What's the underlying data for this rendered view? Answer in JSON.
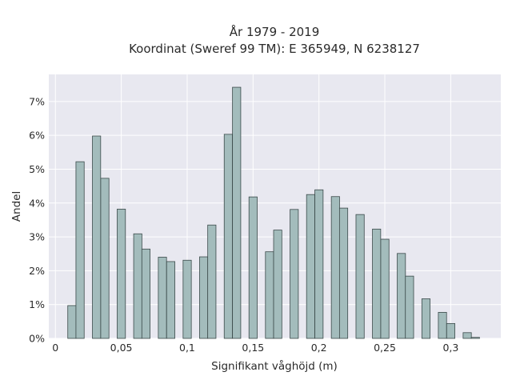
{
  "chart_data": {
    "type": "bar",
    "title_line1": "År 1979 - 2019",
    "title_line2": "Koordinat (Sweref 99 TM): E 365949, N 6238127",
    "xlabel": "Signifikant våghöjd (m)",
    "ylabel": "Andel",
    "xlim": [
      -0.005,
      0.338
    ],
    "ylim": [
      0,
      7.8
    ],
    "bin_width": 0.00625,
    "x_ticks": [
      {
        "value": 0,
        "label": "0"
      },
      {
        "value": 0.05,
        "label": "0,05"
      },
      {
        "value": 0.1,
        "label": "0,1"
      },
      {
        "value": 0.15,
        "label": "0,15"
      },
      {
        "value": 0.2,
        "label": "0,2"
      },
      {
        "value": 0.25,
        "label": "0,25"
      },
      {
        "value": 0.3,
        "label": "0,3"
      }
    ],
    "y_ticks": [
      {
        "value": 0,
        "label": "0%"
      },
      {
        "value": 1,
        "label": "1%"
      },
      {
        "value": 2,
        "label": "2%"
      },
      {
        "value": 3,
        "label": "3%"
      },
      {
        "value": 4,
        "label": "4%"
      },
      {
        "value": 5,
        "label": "5%"
      },
      {
        "value": 6,
        "label": "6%"
      },
      {
        "value": 7,
        "label": "7%"
      }
    ],
    "bins_start": [
      0.0094,
      0.0156,
      0.0281,
      0.0344,
      0.0469,
      0.0594,
      0.0656,
      0.0781,
      0.0844,
      0.0969,
      0.1094,
      0.1156,
      0.1281,
      0.1344,
      0.1469,
      0.1594,
      0.1656,
      0.1781,
      0.1906,
      0.1969,
      0.2094,
      0.2156,
      0.2281,
      0.2406,
      0.2469,
      0.2594,
      0.2656,
      0.2781,
      0.2906,
      0.2969,
      0.3094,
      0.3156
    ],
    "values": [
      0.97,
      5.22,
      5.98,
      4.73,
      3.82,
      3.09,
      2.64,
      2.4,
      2.27,
      2.31,
      2.41,
      3.35,
      6.03,
      7.42,
      4.18,
      2.56,
      3.2,
      3.81,
      4.25,
      4.39,
      4.19,
      3.85,
      3.66,
      3.23,
      2.93,
      2.51,
      1.84,
      1.17,
      0.77,
      0.44,
      0.17,
      0.03
    ],
    "colors": {
      "plot_bg": "#e8e8f0",
      "grid": "#ffffff",
      "bar_fill": "#a3bcbc",
      "bar_stroke": "#3b4a4a"
    },
    "grid": true
  }
}
